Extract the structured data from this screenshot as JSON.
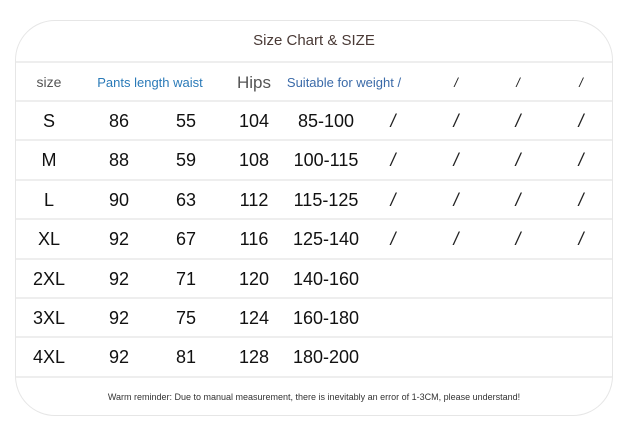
{
  "title": "Size Chart & SIZE",
  "header": {
    "size": "size",
    "pants_length_waist": "Pants length waist",
    "hips": "Hips",
    "weight": "Suitable for weight /",
    "slashes": [
      "/",
      "/",
      "/"
    ]
  },
  "rows": [
    {
      "size": "S",
      "length": "86",
      "waist": "55",
      "hips": "104",
      "weight": "85-100",
      "extra": [
        "/",
        "/",
        "/",
        "/"
      ]
    },
    {
      "size": "M",
      "length": "88",
      "waist": "59",
      "hips": "108",
      "weight": "100-115",
      "extra": [
        "/",
        "/",
        "/",
        "/"
      ]
    },
    {
      "size": "L",
      "length": "90",
      "waist": "63",
      "hips": "112",
      "weight": "115-125",
      "extra": [
        "/",
        "/",
        "/",
        "/"
      ]
    },
    {
      "size": "XL",
      "length": "92",
      "waist": "67",
      "hips": "116",
      "weight": "125-140",
      "extra": [
        "/",
        "/",
        "/",
        "/"
      ]
    },
    {
      "size": "2XL",
      "length": "92",
      "waist": "71",
      "hips": "120",
      "weight": "140-160",
      "extra": []
    },
    {
      "size": "3XL",
      "length": "92",
      "waist": "75",
      "hips": "124",
      "weight": "160-180",
      "extra": []
    },
    {
      "size": "4XL",
      "length": "92",
      "waist": "81",
      "hips": "128",
      "weight": "180-200",
      "extra": []
    }
  ],
  "footer": "Warm reminder: Due to manual measurement, there is inevitably an error of 1-3CM, please understand!"
}
